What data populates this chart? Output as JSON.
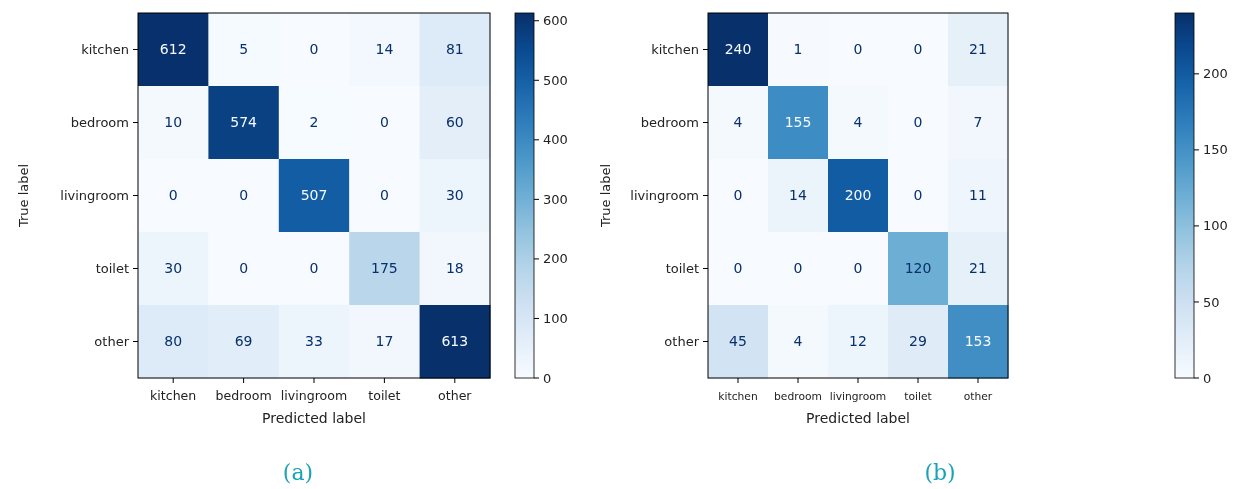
{
  "chart_data": [
    {
      "type": "heatmap",
      "xlabel": "Predicted label",
      "ylabel": "True label",
      "categories": [
        "kitchen",
        "bedroom",
        "livingroom",
        "toilet",
        "other"
      ],
      "y_categories": [
        "kitchen",
        "bedroom",
        "livingroom",
        "toilet",
        "other"
      ],
      "cells": [
        [
          612,
          5,
          0,
          14,
          81
        ],
        [
          10,
          574,
          2,
          0,
          60
        ],
        [
          0,
          0,
          507,
          0,
          30
        ],
        [
          30,
          0,
          0,
          175,
          18
        ],
        [
          80,
          69,
          33,
          17,
          613
        ]
      ],
      "data_labels": true,
      "clim": [
        0,
        613
      ],
      "cticks": [
        0,
        100,
        200,
        300,
        400,
        500,
        600
      ],
      "annotations": [
        "(a)"
      ]
    },
    {
      "type": "heatmap",
      "xlabel": "Predicted label",
      "ylabel": "True label",
      "categories": [
        "kitchen",
        "bedroom",
        "livingroom",
        "toilet",
        "other"
      ],
      "y_categories": [
        "kitchen",
        "bedroom",
        "livingroom",
        "toilet",
        "other"
      ],
      "cells": [
        [
          240,
          1,
          0,
          0,
          21
        ],
        [
          4,
          155,
          4,
          0,
          7
        ],
        [
          0,
          14,
          200,
          0,
          11
        ],
        [
          0,
          0,
          0,
          120,
          21
        ],
        [
          45,
          4,
          12,
          29,
          153
        ]
      ],
      "data_labels": true,
      "clim": [
        0,
        240
      ],
      "cticks": [
        0,
        50,
        100,
        150,
        200
      ],
      "annotations": [
        "(b)"
      ]
    }
  ]
}
